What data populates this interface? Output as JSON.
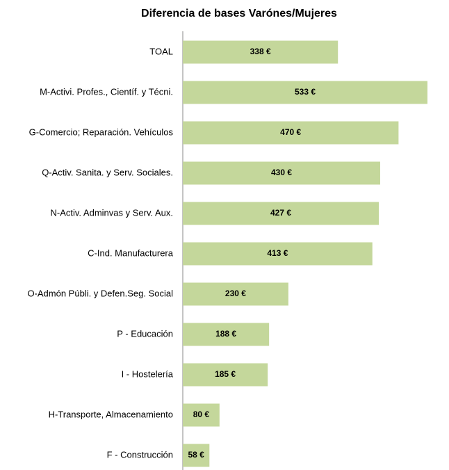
{
  "chart_data": {
    "type": "hbar",
    "title": "Diferencia de bases Varónes/Mujeres",
    "categories": [
      "TOAL",
      "M-Activi. Profes., Científ. y Técni.",
      "G-Comercio; Reparación. Vehículos",
      "Q-Activ. Sanita. y Serv. Sociales.",
      "N-Activ. Adminvas y Serv. Aux.",
      "C-Ind. Manufacturera",
      "O-Admón Públi. y Defen.Seg. Social",
      "P - Educación",
      "I - Hostelería",
      "H-Transporte, Almacenamiento",
      "F - Construcción"
    ],
    "values": [
      338,
      533,
      470,
      430,
      427,
      413,
      230,
      188,
      185,
      80,
      58
    ],
    "value_labels": [
      "338 €",
      "533 €",
      "470 €",
      "430 €",
      "427 €",
      "413 €",
      "230 €",
      "188 €",
      "185 €",
      "80 €",
      "58 €"
    ],
    "color": "#c4d79b"
  }
}
